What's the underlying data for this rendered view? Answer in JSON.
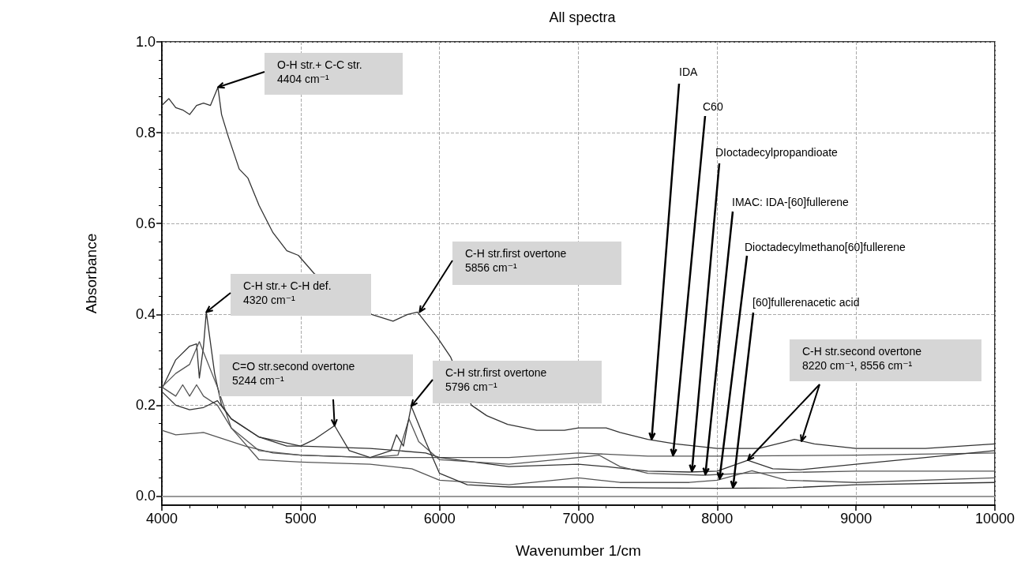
{
  "chart_data": {
    "type": "line",
    "title": "All spectra",
    "xlabel": "Wavenumber 1/cm",
    "ylabel": "Absorbance",
    "xlim": [
      4000,
      10000
    ],
    "xticks": [
      4000,
      5000,
      6000,
      7000,
      8000,
      9000,
      10000
    ],
    "ylim": [
      -0.02,
      1.0
    ],
    "yticks": [
      {
        "value": 0,
        "label": "0.0"
      },
      0.2,
      0.4,
      0.6,
      0.8,
      {
        "value": 1,
        "label": "1.0"
      }
    ],
    "grid": true,
    "legend": false,
    "marker": "none",
    "line_style": "solid",
    "ref_lines": [
      {
        "axis": "y",
        "value": 0,
        "color": "#999999",
        "line_style": "solid"
      }
    ],
    "annotations": [
      {
        "text": "O-H str.+ C-C str.\n4404 cm⁻¹",
        "x": 4404,
        "y": 0.9
      },
      {
        "text": "C-H str.+ C-H def.\n4320 cm⁻¹",
        "x": 4320,
        "y": 0.405
      },
      {
        "text": "C-H str.first overtone\n5856 cm⁻¹",
        "x": 5856,
        "y": 0.405
      },
      {
        "text": "C=O str.second overtone\n5244 cm⁻¹",
        "x": 5244,
        "y": 0.155
      },
      {
        "text": "C-H str.first overtone\n5796 cm⁻¹",
        "x": 5796,
        "y": 0.198
      },
      {
        "text": "C-H str.second overtone\n8220 cm⁻¹, 8556 cm⁻¹",
        "x": 8220,
        "y": 0.079
      }
    ],
    "series": [
      {
        "name": "IDA",
        "color": "#333333",
        "x": [
          4000,
          4050,
          4100,
          4150,
          4200,
          4250,
          4300,
          4350,
          4404,
          4430,
          4480,
          4557,
          4620,
          4700,
          4800,
          4900,
          4983,
          5097,
          5511,
          5665,
          5770,
          5841,
          5983,
          6080,
          6230,
          6340,
          6490,
          6700,
          6900,
          7000,
          7200,
          7300,
          7500,
          7700,
          8000,
          8300,
          8500,
          8556,
          8700,
          9000,
          9500,
          10000
        ],
        "values": [
          0.86,
          0.875,
          0.855,
          0.85,
          0.84,
          0.86,
          0.865,
          0.86,
          0.9,
          0.84,
          0.79,
          0.72,
          0.7,
          0.64,
          0.58,
          0.54,
          0.53,
          0.49,
          0.4,
          0.385,
          0.4,
          0.405,
          0.35,
          0.306,
          0.2,
          0.177,
          0.158,
          0.145,
          0.145,
          0.15,
          0.15,
          0.14,
          0.125,
          0.115,
          0.105,
          0.105,
          0.12,
          0.125,
          0.115,
          0.105,
          0.105,
          0.115
        ]
      },
      {
        "name": "C60",
        "color": "#555555",
        "x": [
          4000,
          4100,
          4300,
          4400,
          4600,
          4800,
          5000,
          5500,
          6000,
          6500,
          7000,
          7500,
          8000,
          9000,
          10000
        ],
        "values": [
          0.145,
          0.135,
          0.14,
          0.13,
          0.11,
          0.095,
          0.09,
          0.085,
          0.085,
          0.085,
          0.095,
          0.088,
          0.088,
          0.09,
          0.095
        ]
      },
      {
        "name": "DIoctadecylpropandioate",
        "color": "#333333",
        "x": [
          4000,
          4100,
          4200,
          4250,
          4270,
          4300,
          4320,
          4380,
          4430,
          4500,
          4700,
          5000,
          5500,
          5700,
          5900,
          6000,
          6500,
          7000,
          7200,
          7500,
          7800,
          8000,
          8220,
          8400,
          8600,
          9000,
          9500,
          10000
        ],
        "values": [
          0.236,
          0.3,
          0.33,
          0.335,
          0.26,
          0.33,
          0.405,
          0.27,
          0.2,
          0.17,
          0.13,
          0.11,
          0.105,
          0.1,
          0.095,
          0.085,
          0.065,
          0.07,
          0.065,
          0.055,
          0.053,
          0.055,
          0.079,
          0.06,
          0.058,
          0.07,
          0.085,
          0.1
        ]
      },
      {
        "name": "IMAC: IDA-[60]fullerene",
        "color": "#555555",
        "x": [
          4000,
          4100,
          4200,
          4270,
          4400,
          4500,
          4700,
          5000,
          5500,
          5700,
          5780,
          5850,
          6000,
          6500,
          7000,
          7150,
          7300,
          7500,
          7900,
          8200,
          9000,
          10000
        ],
        "values": [
          0.24,
          0.27,
          0.29,
          0.34,
          0.24,
          0.15,
          0.1,
          0.09,
          0.085,
          0.09,
          0.17,
          0.12,
          0.08,
          0.07,
          0.085,
          0.09,
          0.065,
          0.05,
          0.046,
          0.05,
          0.055,
          0.055
        ]
      },
      {
        "name": "Dioctadecylmethano[60]fullerene",
        "color": "#555555",
        "x": [
          4000,
          4100,
          4150,
          4200,
          4250,
          4300,
          4400,
          4500,
          4700,
          5000,
          5500,
          5800,
          6000,
          6500,
          7000,
          7300,
          7800,
          8000,
          8250,
          8500,
          9000,
          10000
        ],
        "values": [
          0.24,
          0.22,
          0.245,
          0.22,
          0.245,
          0.22,
          0.2,
          0.15,
          0.08,
          0.075,
          0.07,
          0.06,
          0.035,
          0.025,
          0.04,
          0.03,
          0.03,
          0.035,
          0.056,
          0.035,
          0.03,
          0.04
        ]
      },
      {
        "name": "[60]fullerenacetic acid",
        "color": "#333333",
        "x": [
          4000,
          4100,
          4200,
          4300,
          4400,
          4500,
          4700,
          4900,
          5000,
          5100,
          5244,
          5350,
          5500,
          5650,
          5690,
          5740,
          5796,
          5900,
          6000,
          6200,
          6500,
          6800,
          7000,
          7500,
          8000,
          8500,
          9000,
          10000
        ],
        "values": [
          0.23,
          0.2,
          0.19,
          0.195,
          0.21,
          0.17,
          0.13,
          0.11,
          0.11,
          0.125,
          0.155,
          0.1,
          0.085,
          0.1,
          0.135,
          0.11,
          0.198,
          0.12,
          0.05,
          0.025,
          0.02,
          0.02,
          0.02,
          0.018,
          0.017,
          0.018,
          0.025,
          0.03
        ]
      }
    ]
  }
}
